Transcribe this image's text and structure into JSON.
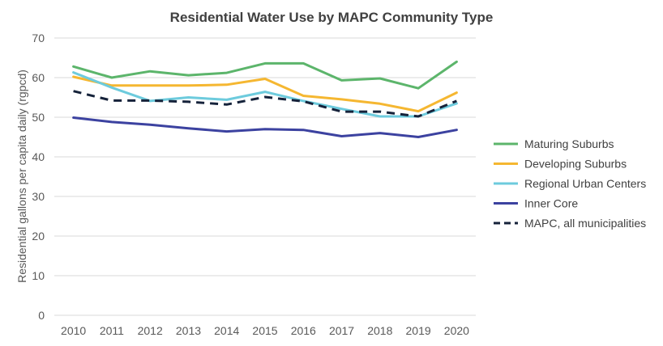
{
  "chart_data": {
    "type": "line",
    "title": "Residential Water Use by MAPC Community Type",
    "ylabel": "Residential gallons per capita daily (rgpcd)",
    "xlabel": "",
    "x": [
      "2010",
      "2011",
      "2012",
      "2013",
      "2014",
      "2015",
      "2016",
      "2017",
      "2018",
      "2019",
      "2020"
    ],
    "ylim": [
      0,
      70
    ],
    "yticks": [
      0,
      10,
      20,
      30,
      40,
      50,
      60,
      70
    ],
    "grid": true,
    "legend_position": "right",
    "series": [
      {
        "name": "Maturing Suburbs",
        "color": "#5cb56b",
        "dash": false,
        "values": [
          62.8,
          60.0,
          61.6,
          60.6,
          61.2,
          63.6,
          63.6,
          59.3,
          59.8,
          57.3,
          64.0
        ]
      },
      {
        "name": "Developing Suburbs",
        "color": "#f5b731",
        "dash": false,
        "values": [
          60.2,
          58.0,
          58.0,
          58.0,
          58.2,
          59.7,
          55.4,
          54.5,
          53.4,
          51.5,
          56.2
        ]
      },
      {
        "name": "Regional Urban Centers",
        "color": "#6dcbdd",
        "dash": false,
        "values": [
          61.3,
          57.5,
          54.1,
          55.0,
          54.4,
          56.4,
          54.1,
          52.1,
          50.2,
          50.2,
          53.5
        ]
      },
      {
        "name": "Inner Core",
        "color": "#3c42a0",
        "dash": false,
        "values": [
          49.9,
          48.8,
          48.1,
          47.2,
          46.4,
          47.0,
          46.8,
          45.2,
          46.0,
          45.0,
          46.8
        ]
      },
      {
        "name": "MAPC, all municipalities",
        "color": "#15223a",
        "dash": true,
        "values": [
          56.6,
          54.2,
          54.2,
          53.9,
          53.2,
          55.1,
          54.0,
          51.4,
          51.4,
          50.2,
          54.1
        ]
      }
    ]
  }
}
